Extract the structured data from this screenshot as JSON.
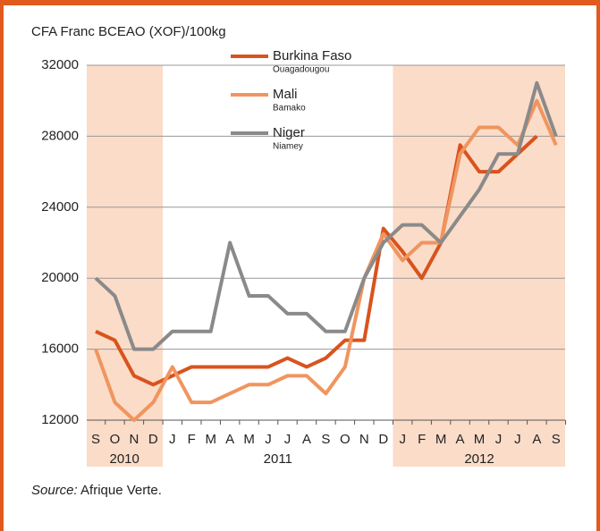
{
  "chart_data": {
    "type": "line",
    "y_axis_label": "CFA Franc BCEAO (XOF)/100kg",
    "categories": [
      "S",
      "O",
      "N",
      "D",
      "J",
      "F",
      "M",
      "A",
      "M",
      "J",
      "J",
      "A",
      "S",
      "O",
      "N",
      "D",
      "J",
      "F",
      "M",
      "A",
      "M",
      "J",
      "J",
      "A",
      "S"
    ],
    "years": [
      {
        "label": "2010",
        "months": 4
      },
      {
        "label": "2011",
        "months": 12
      },
      {
        "label": "2012",
        "months": 9
      }
    ],
    "series": [
      {
        "name": "Burkina Faso",
        "city": "Ouagadougou",
        "color": "#d9531e",
        "values": [
          17000,
          16500,
          14500,
          14000,
          14500,
          15000,
          15000,
          15000,
          15000,
          15000,
          15500,
          15000,
          15500,
          16500,
          16500,
          22800,
          21500,
          20000,
          22000,
          27500,
          26000,
          26000,
          27000,
          28000,
          null
        ]
      },
      {
        "name": "Mali",
        "city": "Bamako",
        "color": "#f0955f",
        "values": [
          16000,
          13000,
          12000,
          13000,
          15000,
          13000,
          13000,
          13500,
          14000,
          14000,
          14500,
          14500,
          13500,
          15000,
          20000,
          22500,
          21000,
          22000,
          22000,
          27000,
          28500,
          28500,
          27500,
          30000,
          27500
        ]
      },
      {
        "name": "Niger",
        "city": "Niamey",
        "color": "#8a8a8a",
        "values": [
          20000,
          19000,
          16000,
          16000,
          17000,
          17000,
          17000,
          22000,
          19000,
          19000,
          18000,
          18000,
          17000,
          17000,
          20000,
          22000,
          23000,
          23000,
          22000,
          23500,
          25000,
          27000,
          27000,
          31000,
          28000
        ]
      }
    ],
    "ylim": [
      12000,
      32000
    ],
    "yticks": [
      12000,
      16000,
      20000,
      24000,
      28000,
      32000
    ],
    "grid": true,
    "source_label": "Source:",
    "source": "Afrique Verte."
  }
}
